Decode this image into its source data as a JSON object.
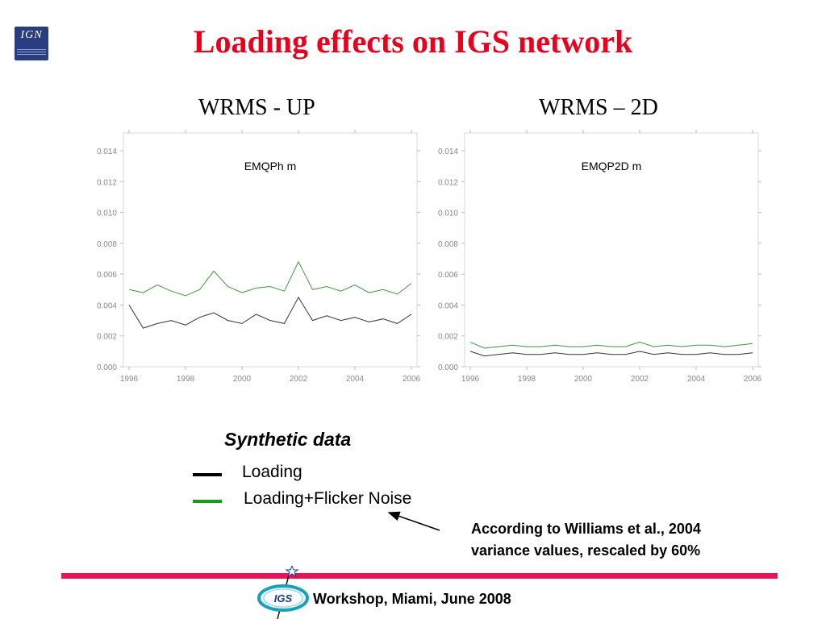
{
  "title": "Loading effects on IGS network",
  "logo": {
    "text": "IGN",
    "icon": "ign-logo"
  },
  "subtitles": {
    "left": "WRMS - UP",
    "right": "WRMS – 2D"
  },
  "legend": {
    "title": "Synthetic data",
    "items": [
      {
        "label": "Loading",
        "color": "#000000"
      },
      {
        "label": "Loading+Flicker Noise",
        "color": "#1a9a1a"
      }
    ]
  },
  "note": {
    "line1": "According to Williams et al., 2004",
    "line2": "variance values, rescaled by 60%"
  },
  "footer": {
    "text": "Workshop, Miami, June 2008",
    "logo_text": "IGS"
  },
  "colors": {
    "title": "#e8001c",
    "footer_bar": "#e8145a",
    "loading": "#333333",
    "flicker": "#3a9a3a"
  },
  "chart_data": [
    {
      "type": "line",
      "title": "EMQPh m",
      "x_ticks": [
        "1996",
        "1998",
        "2000",
        "2002",
        "2004",
        "2006"
      ],
      "y_ticks": [
        "0.000",
        "0.002",
        "0.004",
        "0.006",
        "0.008",
        "0.010",
        "0.012",
        "0.014"
      ],
      "xlim": [
        1996,
        2006
      ],
      "ylim": [
        0,
        0.014
      ],
      "series": [
        {
          "name": "Loading",
          "x": [
            1996.0,
            1996.5,
            1997.0,
            1997.5,
            1998.0,
            1998.5,
            1999.0,
            1999.5,
            2000.0,
            2000.5,
            2001.0,
            2001.5,
            2002.0,
            2002.5,
            2003.0,
            2003.5,
            2004.0,
            2004.5,
            2005.0,
            2005.5,
            2006.0
          ],
          "y": [
            0.004,
            0.0025,
            0.0028,
            0.003,
            0.0027,
            0.0032,
            0.0035,
            0.003,
            0.0028,
            0.0034,
            0.003,
            0.0028,
            0.0045,
            0.003,
            0.0033,
            0.003,
            0.0032,
            0.0029,
            0.0031,
            0.0028,
            0.0034
          ]
        },
        {
          "name": "Loading+Flicker Noise",
          "x": [
            1996.0,
            1996.5,
            1997.0,
            1997.5,
            1998.0,
            1998.5,
            1999.0,
            1999.5,
            2000.0,
            2000.5,
            2001.0,
            2001.5,
            2002.0,
            2002.5,
            2003.0,
            2003.5,
            2004.0,
            2004.5,
            2005.0,
            2005.5,
            2006.0
          ],
          "y": [
            0.005,
            0.0048,
            0.0053,
            0.0049,
            0.0046,
            0.005,
            0.0062,
            0.0052,
            0.0048,
            0.0051,
            0.0052,
            0.0049,
            0.0068,
            0.005,
            0.0052,
            0.0049,
            0.0053,
            0.0048,
            0.005,
            0.0047,
            0.0054
          ]
        }
      ]
    },
    {
      "type": "line",
      "title": "EMQP2D m",
      "x_ticks": [
        "1996",
        "1998",
        "2000",
        "2002",
        "2004",
        "2006"
      ],
      "y_ticks": [
        "0.000",
        "0.002",
        "0.004",
        "0.006",
        "0.008",
        "0.010",
        "0.012",
        "0.014"
      ],
      "xlim": [
        1996,
        2006
      ],
      "ylim": [
        0,
        0.014
      ],
      "series": [
        {
          "name": "Loading",
          "x": [
            1996.0,
            1996.5,
            1997.0,
            1997.5,
            1998.0,
            1998.5,
            1999.0,
            1999.5,
            2000.0,
            2000.5,
            2001.0,
            2001.5,
            2002.0,
            2002.5,
            2003.0,
            2003.5,
            2004.0,
            2004.5,
            2005.0,
            2005.5,
            2006.0
          ],
          "y": [
            0.001,
            0.0007,
            0.0008,
            0.0009,
            0.0008,
            0.0008,
            0.0009,
            0.0008,
            0.0008,
            0.0009,
            0.0008,
            0.0008,
            0.001,
            0.0008,
            0.0009,
            0.0008,
            0.0008,
            0.0009,
            0.0008,
            0.0008,
            0.0009
          ]
        },
        {
          "name": "Loading+Flicker Noise",
          "x": [
            1996.0,
            1996.5,
            1997.0,
            1997.5,
            1998.0,
            1998.5,
            1999.0,
            1999.5,
            2000.0,
            2000.5,
            2001.0,
            2001.5,
            2002.0,
            2002.5,
            2003.0,
            2003.5,
            2004.0,
            2004.5,
            2005.0,
            2005.5,
            2006.0
          ],
          "y": [
            0.0016,
            0.0012,
            0.0013,
            0.0014,
            0.0013,
            0.0013,
            0.0014,
            0.0013,
            0.0013,
            0.0014,
            0.0013,
            0.0013,
            0.0016,
            0.0013,
            0.0014,
            0.0013,
            0.0014,
            0.0014,
            0.0013,
            0.0014,
            0.0015
          ]
        }
      ]
    }
  ]
}
